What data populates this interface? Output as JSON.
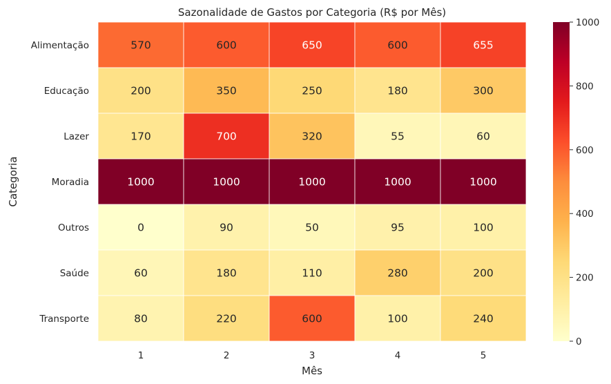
{
  "chart_data": {
    "type": "heatmap",
    "title": "Sazonalidade de Gastos por Categoria (R$ por Mês)",
    "xlabel": "Mês",
    "ylabel": "Categoria",
    "x_categories": [
      "1",
      "2",
      "3",
      "4",
      "5"
    ],
    "y_categories": [
      "Alimentação",
      "Educação",
      "Lazer",
      "Moradia",
      "Outros",
      "Saúde",
      "Transporte"
    ],
    "values": [
      [
        570,
        600,
        650,
        600,
        655
      ],
      [
        200,
        350,
        250,
        180,
        300
      ],
      [
        170,
        700,
        320,
        55,
        60
      ],
      [
        1000,
        1000,
        1000,
        1000,
        1000
      ],
      [
        0,
        90,
        50,
        95,
        100
      ],
      [
        60,
        180,
        110,
        280,
        200
      ],
      [
        80,
        220,
        600,
        100,
        240
      ]
    ],
    "colorbar": {
      "range": [
        0,
        1000
      ],
      "ticks": [
        "0",
        "200",
        "400",
        "600",
        "800",
        "1000"
      ],
      "colormap": "YlOrRd"
    },
    "annotations": true
  }
}
